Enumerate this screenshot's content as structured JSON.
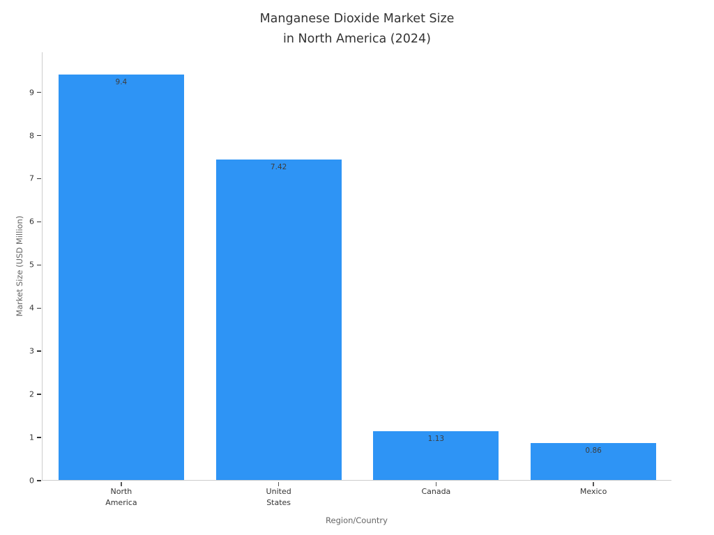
{
  "title": {
    "line1": "Manganese Dioxide Market Size",
    "line2": "in North America (2024)"
  },
  "chart_data": {
    "type": "bar",
    "categories": [
      "North America",
      "United States",
      "Canada",
      "Mexico"
    ],
    "tick_label_lines": [
      [
        "North",
        "America"
      ],
      [
        "United",
        "States"
      ],
      [
        "Canada"
      ],
      [
        "Mexico"
      ]
    ],
    "values": [
      9.4,
      7.42,
      1.13,
      0.86
    ],
    "value_labels": [
      "9.4",
      "7.42",
      "1.13",
      "0.86"
    ],
    "title": "Manganese Dioxide Market Size in North America (2024)",
    "xlabel": "Region/Country",
    "ylabel": "Market Size (USD Million)",
    "ylim": [
      0,
      9.93
    ],
    "yticks": [
      0,
      1,
      2,
      3,
      4,
      5,
      6,
      7,
      8,
      9
    ],
    "grid": false,
    "legend": "none",
    "bar_color": "#2E94F5",
    "background_color": "#FFFFFF",
    "axis_line_color": "#CCCCCC",
    "tick_color": "#333333",
    "value_label_color": "#3D3D3D"
  }
}
